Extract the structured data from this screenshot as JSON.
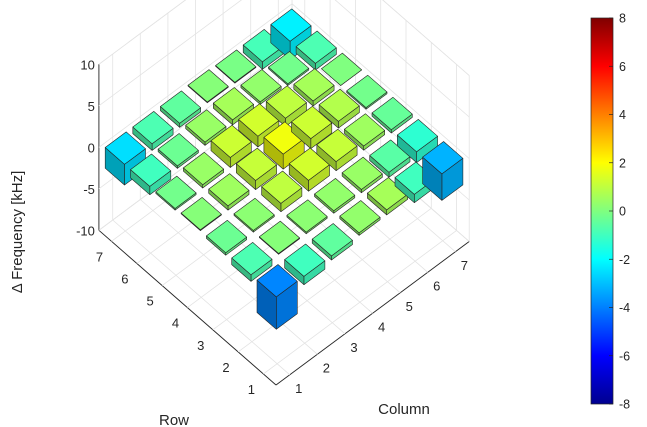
{
  "chart_data": {
    "type": "bar3d",
    "title": "",
    "zlabel": "Δ Frequency [kHz]",
    "xlabel": "Column",
    "ylabel": "Row",
    "zlim": [
      -10,
      10
    ],
    "z_ticks": [
      "-10",
      "-5",
      "0",
      "5",
      "10"
    ],
    "row_ticks": [
      "1",
      "2",
      "3",
      "4",
      "5",
      "6",
      "7"
    ],
    "column_ticks": [
      "1",
      "2",
      "3",
      "4",
      "5",
      "6",
      "7"
    ],
    "colorbar": {
      "colormap": "jet",
      "range": [
        -8,
        8
      ],
      "ticks": [
        "8",
        "6",
        "4",
        "2",
        "0",
        "-2",
        "-4",
        "-6",
        "-8"
      ]
    },
    "grid": true,
    "rows": [
      1,
      2,
      3,
      4,
      5,
      6,
      7
    ],
    "columns": [
      1,
      2,
      3,
      4,
      5,
      6,
      7
    ],
    "values": [
      [
        -3.9,
        -1.0,
        -0.5,
        0.3,
        0.6,
        -1.0,
        -3.2
      ],
      [
        -0.8,
        0.1,
        0.2,
        0.3,
        0.4,
        -0.6,
        -1.3
      ],
      [
        -0.3,
        0.2,
        1.0,
        1.3,
        1.1,
        0.5,
        -0.4
      ],
      [
        0.1,
        0.5,
        1.1,
        1.8,
        1.2,
        0.8,
        -0.2
      ],
      [
        -0.2,
        0.4,
        1.2,
        1.3,
        1.0,
        0.6,
        0.0
      ],
      [
        -1.0,
        -0.3,
        0.4,
        0.6,
        0.3,
        -0.2,
        -0.8
      ],
      [
        -2.5,
        -0.8,
        -0.5,
        0.1,
        -0.1,
        -0.9,
        -2.2
      ]
    ]
  }
}
